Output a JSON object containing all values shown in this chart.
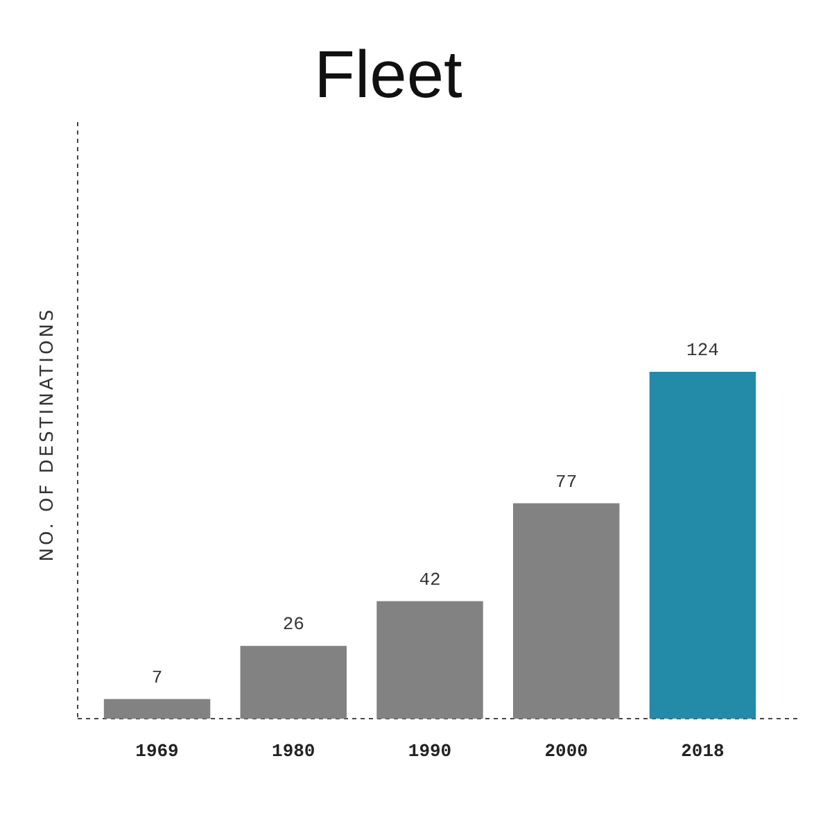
{
  "chart_data": {
    "type": "bar",
    "title": "Fleet",
    "ylabel": "NO. OF DESTINATIONS",
    "categories": [
      "1969",
      "1980",
      "1990",
      "2000",
      "2018"
    ],
    "values": [
      7,
      26,
      42,
      77,
      124
    ],
    "colors": [
      "#828282",
      "#828282",
      "#828282",
      "#828282",
      "#238aa8"
    ],
    "data_labels": true
  }
}
